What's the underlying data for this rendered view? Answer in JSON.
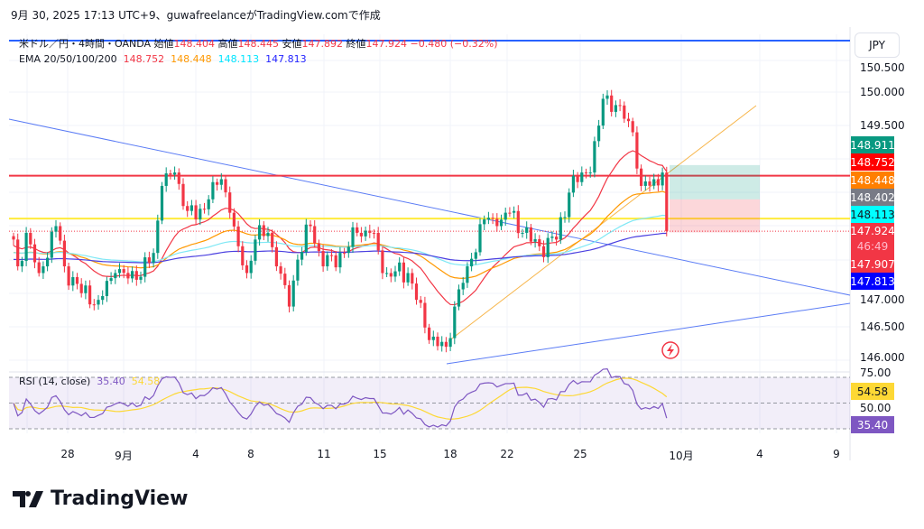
{
  "caption": "9月 30, 2025 17:13 UTC+9、guwafreelanceがTradingView.comで作成",
  "legend": {
    "symbol": "米ドル／円・4時間・OANDA",
    "open_label": "始値",
    "open": "148.404",
    "high_label": "高値",
    "high": "148.445",
    "low_label": "安値",
    "low": "147.892",
    "close_label": "終値",
    "close": "147.924",
    "change": "−0.480 (−0.32%)",
    "ema_label": "EMA 20/50/100/200",
    "ema20": "148.752",
    "ema50": "148.448",
    "ema100": "148.113",
    "ema200": "147.813"
  },
  "rsi_legend": {
    "label": "RSI (14, close)",
    "rsi": "35.40",
    "ma": "54.58"
  },
  "currency": "JPY",
  "price_ticks": [
    "150.500",
    "150.000",
    "149.500",
    "147.000",
    "146.500",
    "146.000"
  ],
  "rsi_ticks": [
    "75.00",
    "50.00"
  ],
  "price_labels": [
    {
      "value": "148.911",
      "color": "#089981"
    },
    {
      "value": "148.752",
      "color": "#ff0000"
    },
    {
      "value": "148.448",
      "color": "#ff7f00"
    },
    {
      "value": "148.402",
      "color": "#787b86"
    },
    {
      "value": "148.113",
      "color": "#00ffff"
    },
    {
      "value": "147.924",
      "sub": "46:49",
      "color": "#f23645"
    },
    {
      "value": "147.907",
      "color": "#f23645"
    },
    {
      "value": "147.813",
      "color": "#0000ff"
    }
  ],
  "rsi_labels": [
    {
      "value": "54.58",
      "color": "#fdd835"
    },
    {
      "value": "35.40",
      "color": "#7e57c2"
    }
  ],
  "time_labels": [
    "28",
    "9月",
    "4",
    "8",
    "11",
    "15",
    "18",
    "22",
    "25",
    "10月",
    "4",
    "9"
  ],
  "brand": "TradingView",
  "chart_data": {
    "type": "candlestick",
    "ylim": [
      145.95,
      150.6
    ],
    "key_closes": [
      [
        0,
        147.8
      ],
      [
        1,
        147.4
      ],
      [
        3,
        147.9
      ],
      [
        6,
        147.3
      ],
      [
        10,
        148.0
      ],
      [
        12,
        147.4
      ],
      [
        16,
        147.0
      ],
      [
        20,
        146.9
      ],
      [
        24,
        147.3
      ],
      [
        29,
        147.2
      ],
      [
        33,
        147.6
      ],
      [
        35,
        148.6
      ],
      [
        38,
        148.8
      ],
      [
        40,
        148.3
      ],
      [
        43,
        148.1
      ],
      [
        46,
        148.4
      ],
      [
        49,
        148.7
      ],
      [
        51,
        148.2
      ],
      [
        53,
        147.7
      ],
      [
        55,
        147.3
      ],
      [
        57,
        147.8
      ],
      [
        60,
        147.9
      ],
      [
        62,
        147.4
      ],
      [
        65,
        146.8
      ],
      [
        67,
        147.5
      ],
      [
        70,
        148.0
      ],
      [
        73,
        147.4
      ],
      [
        78,
        147.6
      ],
      [
        81,
        147.9
      ],
      [
        84,
        147.9
      ],
      [
        88,
        147.3
      ],
      [
        93,
        147.3
      ],
      [
        95,
        146.9
      ],
      [
        98,
        146.3
      ],
      [
        102,
        146.2
      ],
      [
        104,
        146.8
      ],
      [
        107,
        147.4
      ],
      [
        111,
        148.1
      ],
      [
        114,
        148.0
      ],
      [
        117,
        148.2
      ],
      [
        120,
        147.9
      ],
      [
        124,
        147.7
      ],
      [
        128,
        147.8
      ],
      [
        131,
        148.5
      ],
      [
        134,
        148.8
      ],
      [
        136,
        148.8
      ],
      [
        138,
        149.5
      ],
      [
        139,
        149.9
      ],
      [
        143,
        149.8
      ],
      [
        146,
        149.4
      ],
      [
        148,
        148.6
      ],
      [
        151,
        148.7
      ],
      [
        153,
        148.8
      ],
      [
        154,
        147.924
      ]
    ],
    "horizontal_levels": [
      148.752,
      148.113,
      147.924
    ],
    "position": {
      "entry": 148.4,
      "target": 148.911,
      "stop": 147.907
    }
  }
}
